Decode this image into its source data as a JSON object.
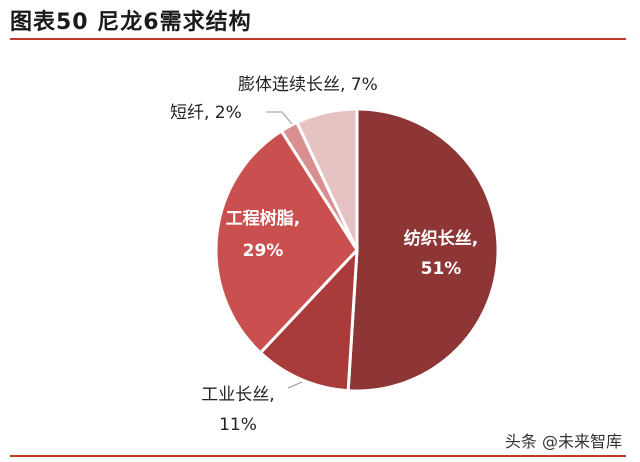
{
  "header": {
    "title": "图表50 尼龙6需求结构"
  },
  "watermark": "头条 @未来智库",
  "colors": {
    "accent": "#c0392b"
  },
  "chart_data": {
    "type": "pie",
    "title": "",
    "slices": [
      {
        "name": "纺织长丝",
        "value": 51,
        "label_name": "纺织长丝,",
        "label_value": "51%",
        "color": "#8e3535"
      },
      {
        "name": "工业长丝",
        "value": 11,
        "label_name": "工业长丝,",
        "label_value": "11%",
        "color": "#a93b3b"
      },
      {
        "name": "工程树脂",
        "value": 29,
        "label_name": "工程树脂,",
        "label_value": "29%",
        "color": "#c9504f"
      },
      {
        "name": "短纤",
        "value": 2,
        "label_name": "短纤,",
        "label_value": "2%",
        "color": "#d98f8f"
      },
      {
        "name": "膨体连续长丝",
        "value": 7,
        "label_name": "膨体连续长丝,",
        "label_value": "7%",
        "color": "#e6c3c3"
      }
    ]
  }
}
